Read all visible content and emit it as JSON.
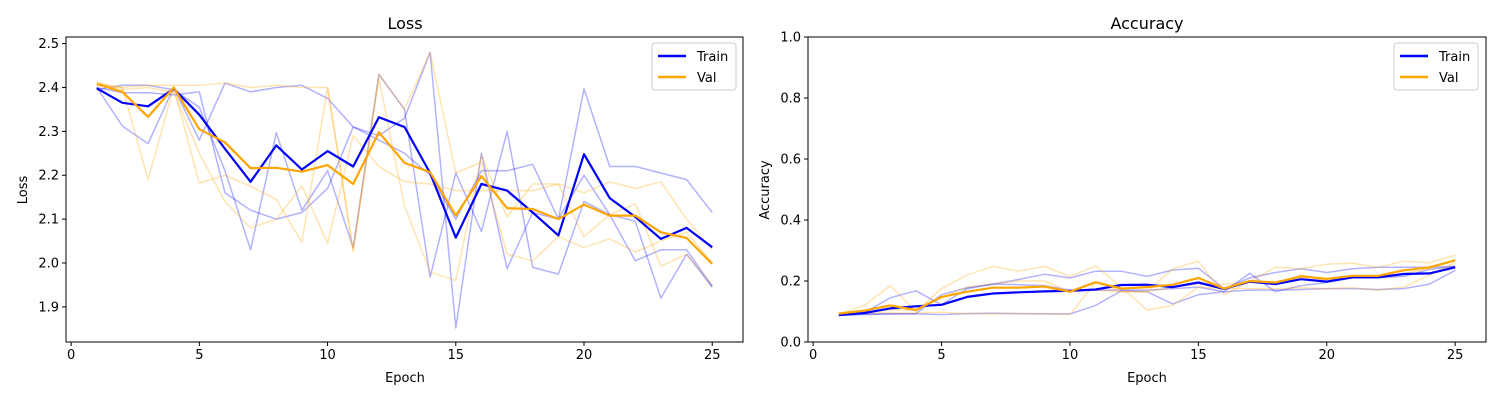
{
  "chart_data": [
    {
      "type": "line",
      "title": "Loss",
      "xlabel": "Epoch",
      "ylabel": "Loss",
      "xlim": [
        -0.2,
        26.2
      ],
      "ylim": [
        1.82,
        2.515
      ],
      "xticks": [
        0,
        5,
        10,
        15,
        20,
        25
      ],
      "yticks": [
        1.9,
        2.0,
        2.1,
        2.2,
        2.3,
        2.4,
        2.5
      ],
      "ytick_decimals": 1,
      "grid": false,
      "legend": "top-right",
      "x": [
        1,
        2,
        3,
        4,
        5,
        6,
        7,
        8,
        9,
        10,
        11,
        12,
        13,
        14,
        15,
        16,
        17,
        18,
        19,
        20,
        21,
        22,
        23,
        24,
        25
      ],
      "series": [
        {
          "name": "Train",
          "role": "mean",
          "color": "#0000ff",
          "values": [
            2.398,
            2.365,
            2.357,
            2.397,
            2.338,
            2.26,
            2.185,
            2.268,
            2.213,
            2.255,
            2.22,
            2.332,
            2.31,
            2.205,
            2.058,
            2.18,
            2.165,
            2.115,
            2.063,
            2.248,
            2.148,
            2.105,
            2.055,
            2.08,
            2.036
          ]
        },
        {
          "name": "Val",
          "role": "mean",
          "color": "#ffa500",
          "values": [
            2.408,
            2.39,
            2.333,
            2.4,
            2.305,
            2.275,
            2.216,
            2.217,
            2.208,
            2.223,
            2.18,
            2.298,
            2.228,
            2.207,
            2.108,
            2.198,
            2.125,
            2.123,
            2.1,
            2.133,
            2.108,
            2.108,
            2.07,
            2.057,
            1.998
          ]
        },
        {
          "role": "run",
          "color": "#0000ff",
          "values": [
            2.4,
            2.388,
            2.388,
            2.383,
            2.39,
            2.16,
            2.12,
            2.1,
            2.115,
            2.17,
            2.31,
            2.29,
            2.33,
            2.48,
            1.852,
            2.25,
            1.987,
            2.115,
            2.1,
            2.397,
            2.22,
            2.22,
            2.205,
            2.19,
            2.115
          ]
        },
        {
          "role": "run",
          "color": "#0000ff",
          "values": [
            2.395,
            2.405,
            2.405,
            2.395,
            2.355,
            2.21,
            2.03,
            2.297,
            2.12,
            2.21,
            2.035,
            2.43,
            2.35,
            1.968,
            2.205,
            2.072,
            2.3,
            1.99,
            1.975,
            2.14,
            2.11,
            2.005,
            2.03,
            2.03,
            1.947
          ]
        },
        {
          "role": "run",
          "color": "#0000ff",
          "values": [
            2.4,
            2.312,
            2.272,
            2.4,
            2.28,
            2.41,
            2.39,
            2.4,
            2.405,
            2.375,
            2.31,
            2.28,
            2.25,
            2.2,
            2.1,
            2.21,
            2.21,
            2.225,
            2.1,
            2.2,
            2.11,
            2.095,
            1.92,
            2.02,
            1.945
          ]
        },
        {
          "role": "run",
          "color": "#ffa500",
          "values": [
            2.41,
            2.4,
            2.19,
            2.4,
            2.182,
            2.2,
            2.175,
            2.145,
            2.047,
            2.4,
            2.03,
            2.42,
            2.13,
            1.98,
            1.96,
            2.245,
            2.105,
            2.18,
            2.18,
            2.06,
            2.11,
            2.135,
            1.993,
            2.02,
            1.95
          ]
        },
        {
          "role": "run",
          "color": "#ffa500",
          "values": [
            2.405,
            2.4,
            2.405,
            2.405,
            2.405,
            2.41,
            2.4,
            2.405,
            2.4,
            2.4,
            2.025,
            2.43,
            2.35,
            2.48,
            2.205,
            2.23,
            2.02,
            2.005,
            2.06,
            2.035,
            2.055,
            2.025,
            2.05,
            2.07,
            2.0
          ]
        },
        {
          "role": "run",
          "color": "#ffa500",
          "values": [
            2.412,
            2.395,
            2.4,
            2.39,
            2.25,
            2.14,
            2.08,
            2.1,
            2.175,
            2.045,
            2.29,
            2.22,
            2.185,
            2.18,
            2.165,
            2.165,
            2.165,
            2.165,
            2.18,
            2.16,
            2.185,
            2.17,
            2.185,
            2.1,
            2.03
          ]
        }
      ]
    },
    {
      "type": "line",
      "title": "Accuracy",
      "xlabel": "Epoch",
      "ylabel": "Accuracy",
      "xlim": [
        -0.2,
        26.2
      ],
      "ylim": [
        0.0,
        1.0
      ],
      "xticks": [
        0,
        5,
        10,
        15,
        20,
        25
      ],
      "yticks": [
        0.0,
        0.2,
        0.4,
        0.6,
        0.8,
        1.0
      ],
      "ytick_decimals": 1,
      "grid": false,
      "legend": "top-right",
      "x": [
        1,
        2,
        3,
        4,
        5,
        6,
        7,
        8,
        9,
        10,
        11,
        12,
        13,
        14,
        15,
        16,
        17,
        18,
        19,
        20,
        21,
        22,
        23,
        24,
        25
      ],
      "series": [
        {
          "name": "Train",
          "role": "mean",
          "color": "#0000ff",
          "values": [
            0.088,
            0.095,
            0.11,
            0.117,
            0.122,
            0.148,
            0.159,
            0.163,
            0.166,
            0.168,
            0.172,
            0.187,
            0.188,
            0.18,
            0.195,
            0.174,
            0.198,
            0.19,
            0.206,
            0.198,
            0.212,
            0.212,
            0.223,
            0.225,
            0.245
          ]
        },
        {
          "name": "Val",
          "role": "mean",
          "color": "#ffa500",
          "values": [
            0.093,
            0.103,
            0.12,
            0.105,
            0.148,
            0.165,
            0.178,
            0.178,
            0.182,
            0.165,
            0.196,
            0.175,
            0.18,
            0.188,
            0.21,
            0.175,
            0.2,
            0.195,
            0.215,
            0.207,
            0.217,
            0.217,
            0.235,
            0.245,
            0.268
          ]
        },
        {
          "role": "run",
          "color": "#0000ff",
          "values": [
            0.09,
            0.096,
            0.145,
            0.168,
            0.122,
            0.175,
            0.19,
            0.205,
            0.222,
            0.21,
            0.232,
            0.232,
            0.215,
            0.236,
            0.242,
            0.175,
            0.21,
            0.228,
            0.24,
            0.228,
            0.24,
            0.245,
            0.245,
            0.245,
            0.248
          ]
        },
        {
          "role": "run",
          "color": "#0000ff",
          "values": [
            0.088,
            0.09,
            0.092,
            0.092,
            0.09,
            0.093,
            0.094,
            0.093,
            0.092,
            0.092,
            0.12,
            0.168,
            0.165,
            0.125,
            0.155,
            0.165,
            0.225,
            0.165,
            0.185,
            0.195,
            0.21,
            0.21,
            0.215,
            0.238,
            0.248
          ]
        },
        {
          "role": "run",
          "color": "#0000ff",
          "values": [
            0.09,
            0.092,
            0.092,
            0.093,
            0.155,
            0.178,
            0.19,
            0.188,
            0.185,
            0.17,
            0.17,
            0.17,
            0.17,
            0.175,
            0.18,
            0.165,
            0.17,
            0.17,
            0.172,
            0.175,
            0.175,
            0.172,
            0.175,
            0.19,
            0.235
          ]
        },
        {
          "role": "run",
          "color": "#ffa500",
          "values": [
            0.092,
            0.12,
            0.185,
            0.1,
            0.175,
            0.22,
            0.248,
            0.232,
            0.248,
            0.215,
            0.25,
            0.18,
            0.105,
            0.12,
            0.18,
            0.175,
            0.175,
            0.175,
            0.178,
            0.175,
            0.178,
            0.17,
            0.18,
            0.22,
            0.26
          ]
        },
        {
          "role": "run",
          "color": "#ffa500",
          "values": [
            0.092,
            0.095,
            0.095,
            0.095,
            0.097,
            0.093,
            0.093,
            0.093,
            0.093,
            0.09,
            0.195,
            0.165,
            0.165,
            0.24,
            0.265,
            0.155,
            0.198,
            0.245,
            0.24,
            0.255,
            0.258,
            0.245,
            0.265,
            0.26,
            0.285
          ]
        },
        {
          "role": "run",
          "color": "#ffa500",
          "values": [
            0.095,
            0.098,
            0.105,
            0.105,
            0.145,
            0.18,
            0.19,
            0.2,
            0.2,
            0.165,
            0.17,
            0.165,
            0.165,
            0.18,
            0.19,
            0.19,
            0.195,
            0.19,
            0.22,
            0.2,
            0.215,
            0.215,
            0.225,
            0.24,
            0.27
          ]
        }
      ]
    }
  ]
}
